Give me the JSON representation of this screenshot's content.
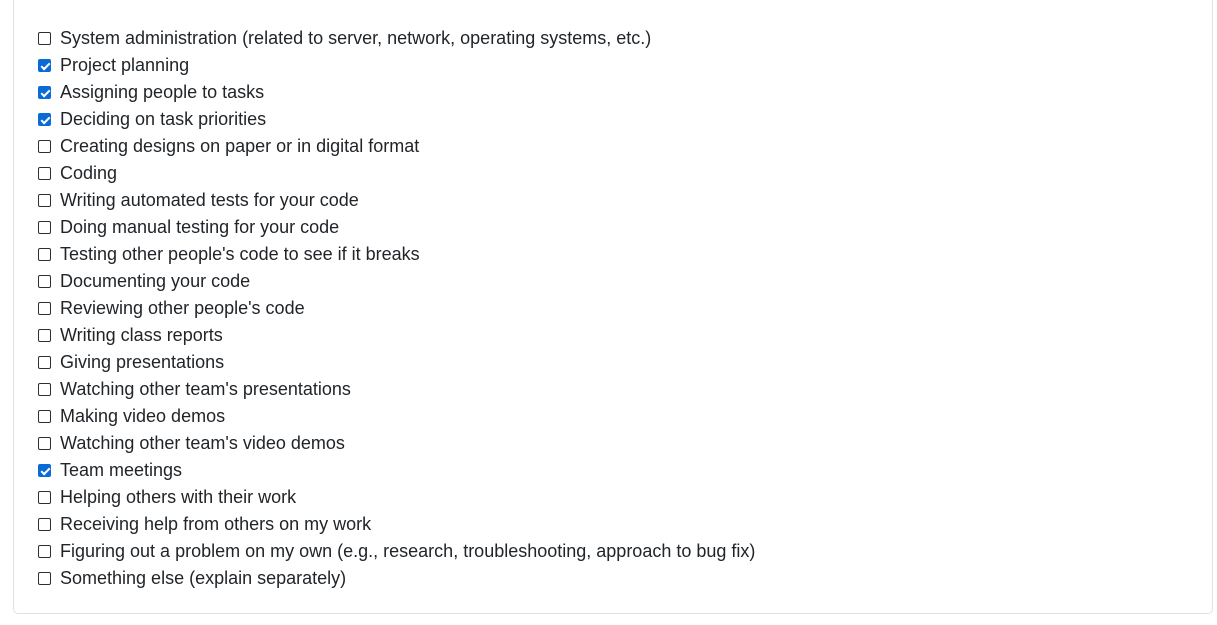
{
  "options": [
    {
      "label": "System administration (related to server, network, operating systems, etc.)",
      "checked": false
    },
    {
      "label": "Project planning",
      "checked": true
    },
    {
      "label": "Assigning people to tasks",
      "checked": true
    },
    {
      "label": "Deciding on task priorities",
      "checked": true
    },
    {
      "label": "Creating designs on paper or in digital format",
      "checked": false
    },
    {
      "label": "Coding",
      "checked": false
    },
    {
      "label": "Writing automated tests for your code",
      "checked": false
    },
    {
      "label": "Doing manual testing for your code",
      "checked": false
    },
    {
      "label": "Testing other people's code to see if it breaks",
      "checked": false
    },
    {
      "label": "Documenting your code",
      "checked": false
    },
    {
      "label": "Reviewing other people's code",
      "checked": false
    },
    {
      "label": "Writing class reports",
      "checked": false
    },
    {
      "label": "Giving presentations",
      "checked": false
    },
    {
      "label": "Watching other team's presentations",
      "checked": false
    },
    {
      "label": "Making video demos",
      "checked": false
    },
    {
      "label": "Watching other team's video demos",
      "checked": false
    },
    {
      "label": "Team meetings",
      "checked": true
    },
    {
      "label": "Helping others with their work",
      "checked": false
    },
    {
      "label": "Receiving help from others on my work",
      "checked": false
    },
    {
      "label": "Figuring out a problem on my own (e.g., research, troubleshooting, approach to bug fix)",
      "checked": false
    },
    {
      "label": "Something else (explain separately)",
      "checked": false
    }
  ],
  "colors": {
    "checked_fill": "#0b6bd6",
    "text": "#212529",
    "border": "#dfe3e6"
  }
}
